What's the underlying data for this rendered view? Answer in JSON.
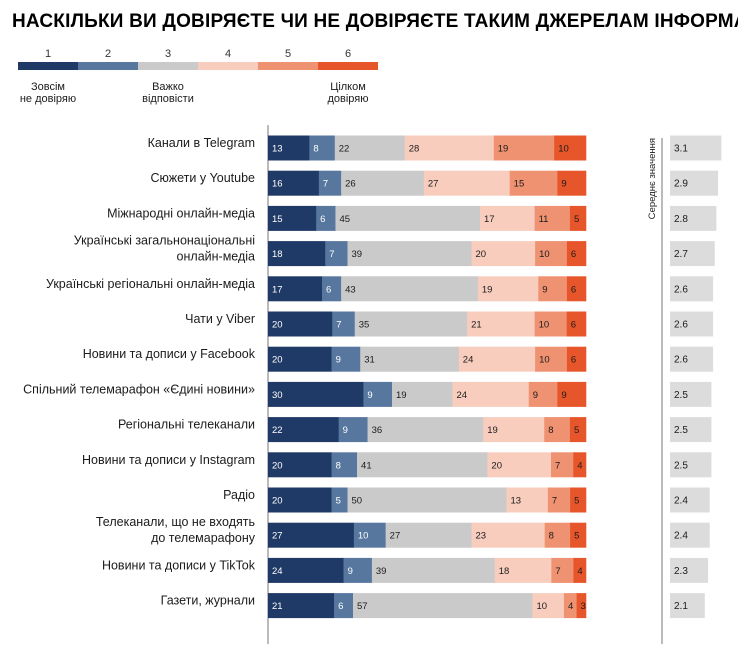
{
  "chart_data": {
    "type": "stacked-bar",
    "title": "НАСКІЛЬКИ ВИ ДОВІРЯЄТЕ ЧИ НЕ ДОВІРЯЄТЕ ТАКИМ ДЖЕРЕЛАМ ІНФОРМАЦІЇ?",
    "scale": [
      "1",
      "2",
      "3",
      "4",
      "5",
      "6"
    ],
    "scale_labels": {
      "low": [
        "Зовсім",
        "не довіряю"
      ],
      "mid": [
        "Важко",
        "відповісти"
      ],
      "high": [
        "Цілком",
        "довіряю"
      ]
    },
    "colors": [
      "#1f3a66",
      "#57779f",
      "#cacaca",
      "#f8cdbe",
      "#ef9272",
      "#e7562a"
    ],
    "value_text_colors": [
      "#ffffff",
      "#ffffff",
      "#1b1b1b",
      "#1b1b1b",
      "#1b1b1b",
      "#1b1b1b"
    ],
    "mean_label": "Середнє значення",
    "mean_color": "#dcdcdc",
    "mean_max": 3.5,
    "categories": [
      [
        "Канали в Telegram"
      ],
      [
        "Сюжети у Youtube"
      ],
      [
        "Міжнародні онлайн-медіа"
      ],
      [
        "Українські загальнонаціональні",
        "онлайн-медіа"
      ],
      [
        "Українські регіональні онлайн-медіа"
      ],
      [
        "Чати у Viber"
      ],
      [
        "Новини та дописи у Facebook"
      ],
      [
        "Спільний телемарафон «Єдині новини»"
      ],
      [
        "Регіональні телеканали"
      ],
      [
        "Новини та дописи у Instagram"
      ],
      [
        "Радіо"
      ],
      [
        "Телеканали, що не входять",
        "до телемарафону"
      ],
      [
        "Новини та дописи у TikTok"
      ],
      [
        "Газети, журнали"
      ]
    ],
    "values": [
      [
        13,
        8,
        22,
        28,
        19,
        10
      ],
      [
        16,
        7,
        26,
        27,
        15,
        9
      ],
      [
        15,
        6,
        45,
        17,
        11,
        5
      ],
      [
        18,
        7,
        39,
        20,
        10,
        6
      ],
      [
        17,
        6,
        43,
        19,
        9,
        6
      ],
      [
        20,
        7,
        35,
        21,
        10,
        6
      ],
      [
        20,
        9,
        31,
        24,
        10,
        6
      ],
      [
        30,
        9,
        19,
        24,
        9,
        9
      ],
      [
        22,
        9,
        36,
        19,
        8,
        5
      ],
      [
        20,
        8,
        41,
        20,
        7,
        4
      ],
      [
        20,
        5,
        50,
        13,
        7,
        5
      ],
      [
        27,
        10,
        27,
        23,
        8,
        5
      ],
      [
        24,
        9,
        39,
        18,
        7,
        4
      ],
      [
        21,
        6,
        57,
        10,
        4,
        3
      ]
    ],
    "means": [
      "3.1",
      "2.9",
      "2.8",
      "2.7",
      "2.6",
      "2.6",
      "2.6",
      "2.5",
      "2.5",
      "2.5",
      "2.4",
      "2.4",
      "2.3",
      "2.1"
    ]
  }
}
